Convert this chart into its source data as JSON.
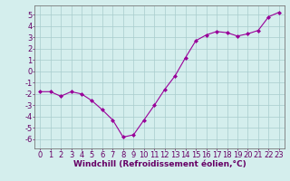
{
  "x": [
    0,
    1,
    2,
    3,
    4,
    5,
    6,
    7,
    8,
    9,
    10,
    11,
    12,
    13,
    14,
    15,
    16,
    17,
    18,
    19,
    20,
    21,
    22,
    23
  ],
  "y": [
    -1.8,
    -1.8,
    -2.2,
    -1.8,
    -2.0,
    -2.6,
    -3.4,
    -4.3,
    -5.8,
    -5.6,
    -4.3,
    -3.0,
    -1.6,
    -0.4,
    1.2,
    2.7,
    3.2,
    3.5,
    3.4,
    3.1,
    3.3,
    3.6,
    4.8,
    5.2
  ],
  "xlabel": "Windchill (Refroidissement éolien,°C)",
  "ylim": [
    -6.8,
    5.8
  ],
  "xlim": [
    -0.5,
    23.5
  ],
  "yticks": [
    -6,
    -5,
    -4,
    -3,
    -2,
    -1,
    0,
    1,
    2,
    3,
    4,
    5
  ],
  "xticks": [
    0,
    1,
    2,
    3,
    4,
    5,
    6,
    7,
    8,
    9,
    10,
    11,
    12,
    13,
    14,
    15,
    16,
    17,
    18,
    19,
    20,
    21,
    22,
    23
  ],
  "line_color": "#990099",
  "marker": "D",
  "marker_size": 2.0,
  "bg_color": "#d4eeed",
  "grid_color": "#a8cccc",
  "xlabel_fontsize": 6.5,
  "tick_fontsize": 6.0,
  "linewidth": 0.8
}
